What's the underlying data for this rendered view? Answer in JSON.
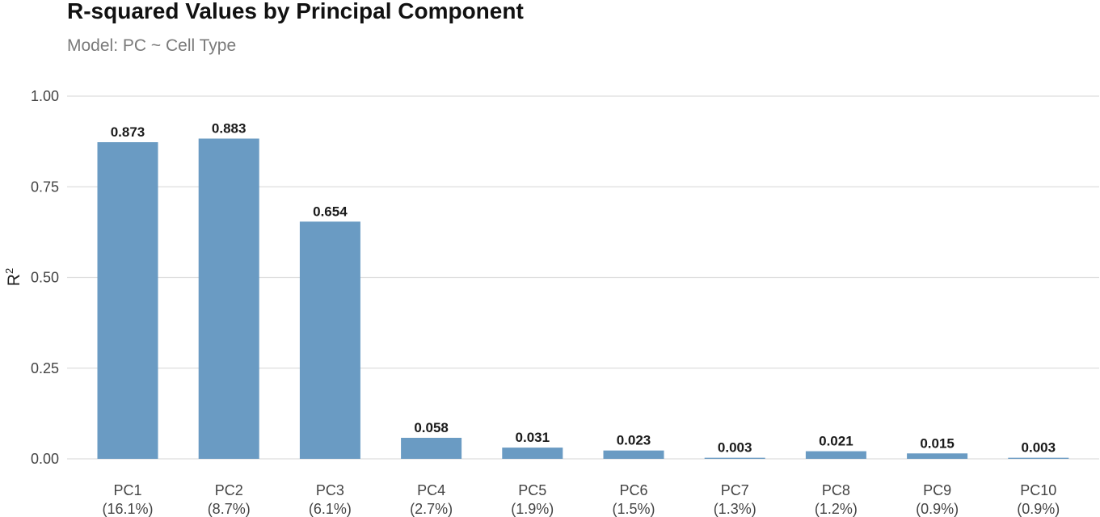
{
  "chart_data": {
    "type": "bar",
    "title": "R-squared Values by Principal Component",
    "subtitle": "Model: PC ~ Cell Type",
    "xlabel": "",
    "ylabel": "R",
    "ylabel_superscript": "2",
    "ylim": [
      0,
      1
    ],
    "yticks": [
      "0.00",
      "0.25",
      "0.50",
      "0.75",
      "1.00"
    ],
    "ytick_values": [
      0,
      0.25,
      0.5,
      0.75,
      1.0
    ],
    "grid": true,
    "legend": "none",
    "bar_color": "#6a9bc3",
    "categories": [
      "PC1",
      "PC2",
      "PC3",
      "PC4",
      "PC5",
      "PC6",
      "PC7",
      "PC8",
      "PC9",
      "PC10"
    ],
    "category_sublabels": [
      "(16.1%)",
      "(8.7%)",
      "(6.1%)",
      "(2.7%)",
      "(1.9%)",
      "(1.5%)",
      "(1.3%)",
      "(1.2%)",
      "(0.9%)",
      "(0.9%)"
    ],
    "values": [
      0.873,
      0.883,
      0.654,
      0.058,
      0.031,
      0.023,
      0.003,
      0.021,
      0.015,
      0.003
    ],
    "data_labels": [
      "0.873",
      "0.883",
      "0.654",
      "0.058",
      "0.031",
      "0.023",
      "0.003",
      "0.021",
      "0.015",
      "0.003"
    ]
  }
}
